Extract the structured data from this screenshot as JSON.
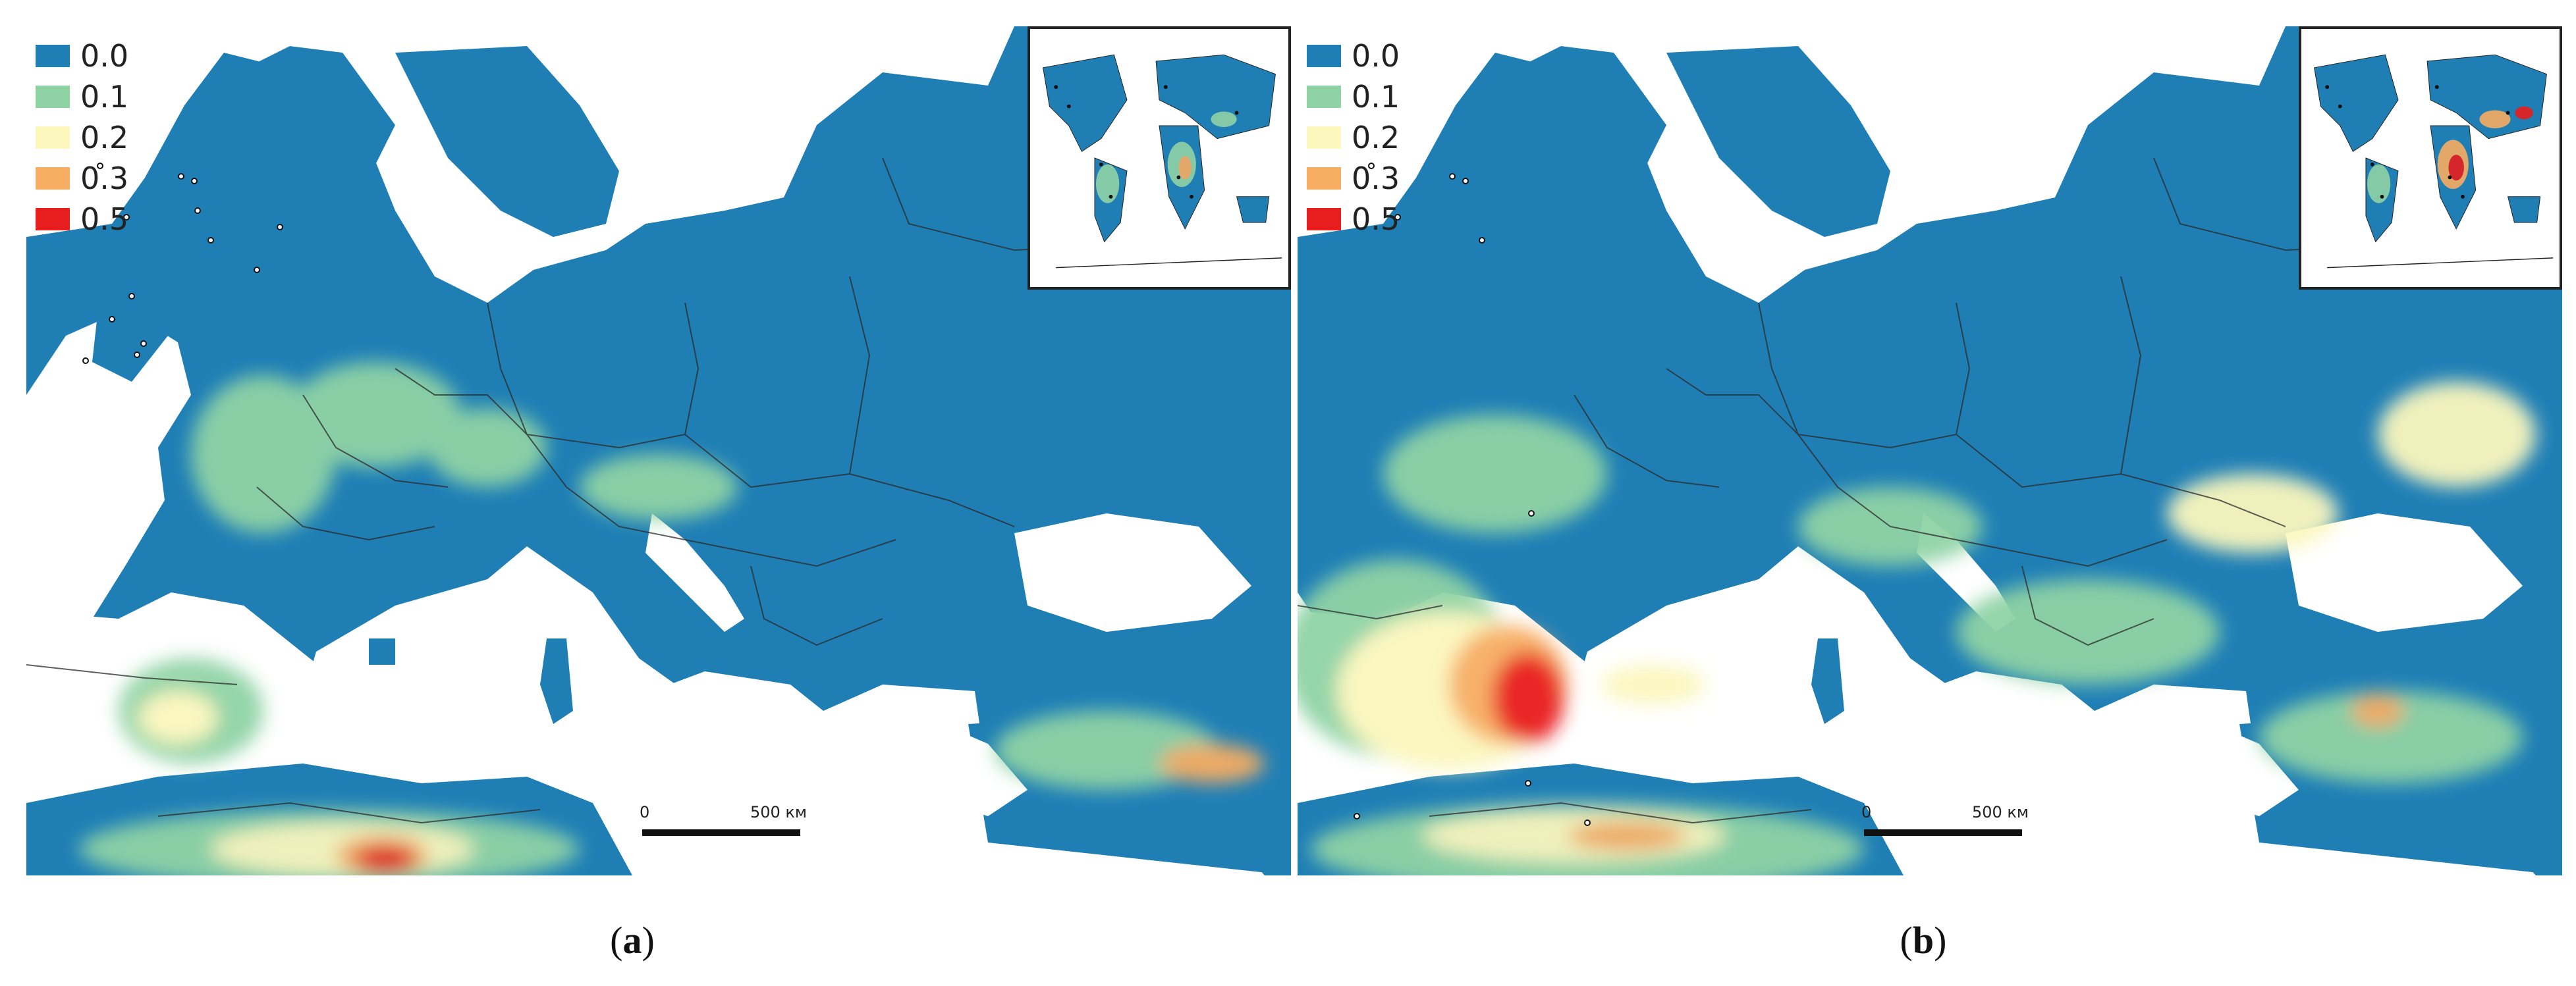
{
  "legend": {
    "items": [
      {
        "label": "0.0",
        "color": "#1f7fb5"
      },
      {
        "label": "0.1",
        "color": "#8fd3a5"
      },
      {
        "label": "0.2",
        "color": "#fbf7bd"
      },
      {
        "label": "0.3",
        "color": "#f7ad62"
      },
      {
        "label": "0.5",
        "color": "#e81d1d"
      }
    ]
  },
  "scale": {
    "zero": "0",
    "max": "500 км"
  },
  "captions": {
    "a": {
      "open": "(",
      "letter": "a",
      "close": ")"
    },
    "b": {
      "open": "(",
      "letter": "b",
      "close": ")"
    }
  },
  "colors": {
    "sea": "#ffffff",
    "base": "#1f7fb5",
    "border": "#2a2a2a"
  }
}
